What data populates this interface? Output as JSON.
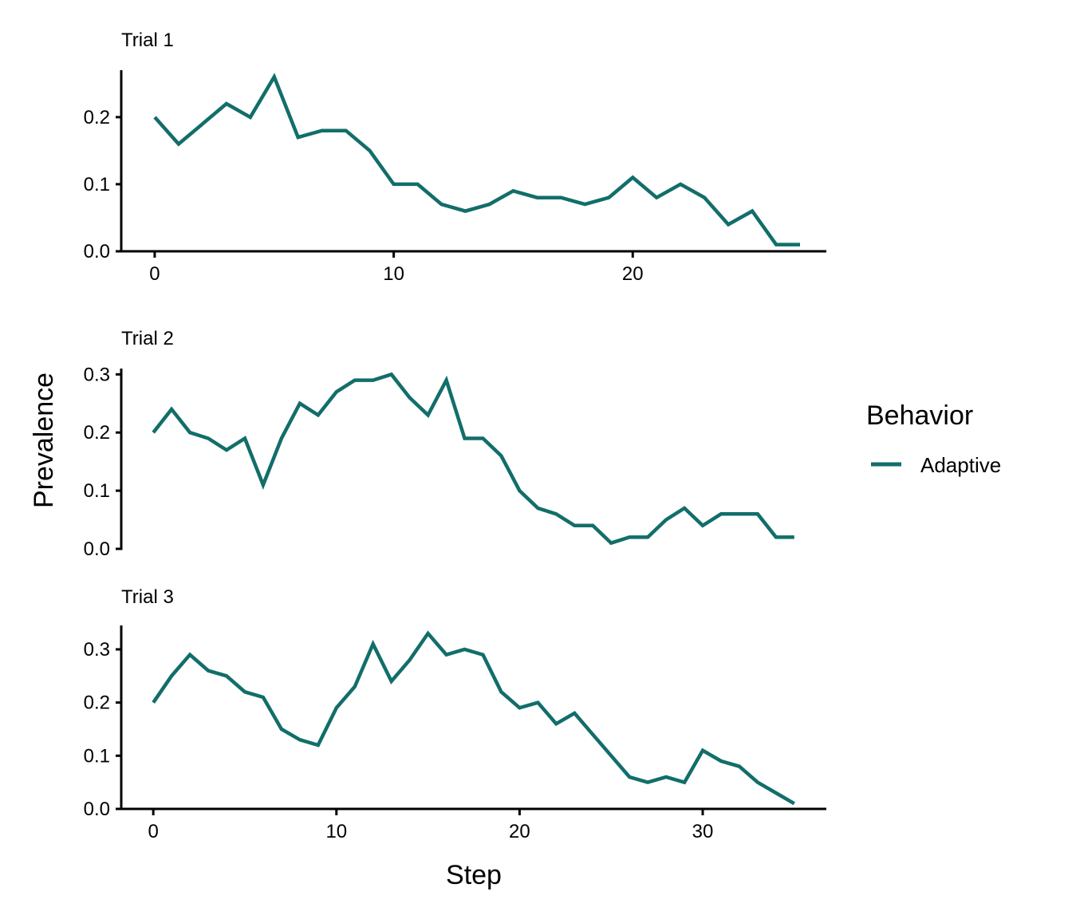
{
  "chart_data": [
    {
      "type": "line",
      "title": "Trial 1",
      "xlabel": "",
      "ylabel": "",
      "x_range": [
        -1.4,
        28.1
      ],
      "ylim": [
        0,
        0.27
      ],
      "xticks": [
        0,
        10,
        20
      ],
      "yticks": [
        0.0,
        0.1,
        0.2
      ],
      "ytick_labels": [
        "0.0",
        "0.1",
        "0.2"
      ],
      "grid": false,
      "series": [
        {
          "name": "Adaptive",
          "color": "#126e6a",
          "x": [
            0,
            1,
            2,
            3,
            4,
            5,
            6,
            7,
            8,
            9,
            10,
            11,
            12,
            13,
            14,
            15,
            16,
            17,
            18,
            19,
            20,
            21,
            22,
            23,
            24,
            25,
            26,
            27
          ],
          "values": [
            0.2,
            0.16,
            0.19,
            0.22,
            0.2,
            0.26,
            0.17,
            0.18,
            0.18,
            0.15,
            0.1,
            0.1,
            0.07,
            0.06,
            0.07,
            0.09,
            0.08,
            0.08,
            0.07,
            0.08,
            0.11,
            0.08,
            0.1,
            0.08,
            0.04,
            0.06,
            0.01,
            0.01
          ]
        }
      ]
    },
    {
      "type": "line",
      "title": "Trial 2",
      "xlabel": "",
      "ylabel": "Prevalence",
      "x_range": [
        -1.75,
        36.75
      ],
      "ylim": [
        0,
        0.31
      ],
      "xticks": [],
      "yticks": [
        0.0,
        0.1,
        0.2,
        0.3
      ],
      "ytick_labels": [
        "0.0",
        "0.1",
        "0.2",
        "0.3"
      ],
      "grid": false,
      "series": [
        {
          "name": "Adaptive",
          "color": "#126e6a",
          "x": [
            0,
            1,
            2,
            3,
            4,
            5,
            6,
            7,
            8,
            9,
            10,
            11,
            12,
            13,
            14,
            15,
            16,
            17,
            18,
            19,
            20,
            21,
            22,
            23,
            24,
            25,
            26,
            27,
            28,
            29,
            30,
            31,
            32,
            33,
            34,
            35
          ],
          "values": [
            0.2,
            0.24,
            0.2,
            0.19,
            0.17,
            0.19,
            0.11,
            0.19,
            0.25,
            0.23,
            0.27,
            0.29,
            0.29,
            0.3,
            0.26,
            0.23,
            0.29,
            0.19,
            0.19,
            0.16,
            0.1,
            0.07,
            0.06,
            0.04,
            0.04,
            0.01,
            0.02,
            0.02,
            0.05,
            0.07,
            0.04,
            0.06,
            0.06,
            0.06,
            0.02,
            0.02
          ]
        }
      ]
    },
    {
      "type": "line",
      "title": "Trial 3",
      "xlabel": "Step",
      "ylabel": "",
      "x_range": [
        -1.75,
        36.75
      ],
      "ylim": [
        0,
        0.345
      ],
      "xticks": [
        0,
        10,
        20,
        30
      ],
      "yticks": [
        0.0,
        0.1,
        0.2,
        0.3
      ],
      "ytick_labels": [
        "0.0",
        "0.1",
        "0.2",
        "0.3"
      ],
      "grid": false,
      "series": [
        {
          "name": "Adaptive",
          "color": "#126e6a",
          "x": [
            0,
            1,
            2,
            3,
            4,
            5,
            6,
            7,
            8,
            9,
            10,
            11,
            12,
            13,
            14,
            15,
            16,
            17,
            18,
            19,
            20,
            21,
            22,
            23,
            24,
            25,
            26,
            27,
            28,
            29,
            30,
            31,
            32,
            33,
            34,
            35
          ],
          "values": [
            0.2,
            0.25,
            0.29,
            0.26,
            0.25,
            0.22,
            0.21,
            0.15,
            0.13,
            0.12,
            0.19,
            0.23,
            0.31,
            0.24,
            0.28,
            0.33,
            0.29,
            0.3,
            0.29,
            0.22,
            0.19,
            0.2,
            0.16,
            0.18,
            0.14,
            0.1,
            0.06,
            0.05,
            0.06,
            0.05,
            0.11,
            0.09,
            0.08,
            0.05,
            0.03,
            0.01
          ]
        }
      ]
    }
  ],
  "axis_titles": {
    "x": "Step",
    "y": "Prevalence"
  },
  "legend": {
    "title": "Behavior",
    "placement": "right",
    "items": [
      {
        "label": "Adaptive",
        "color": "#126e6a"
      }
    ]
  }
}
